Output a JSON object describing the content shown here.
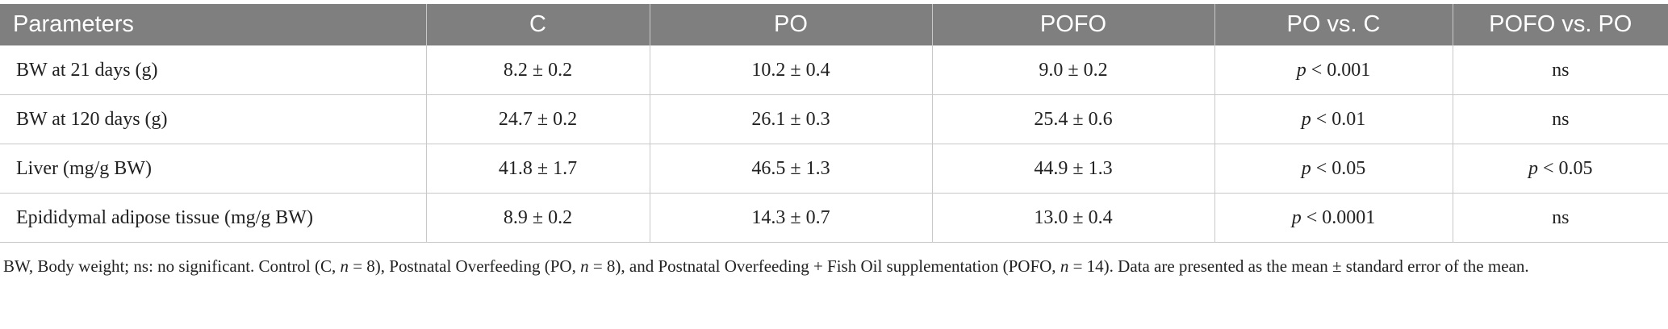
{
  "table": {
    "header": [
      "Parameters",
      "C",
      "PO",
      "POFO",
      "PO vs. C",
      "POFO vs. PO"
    ],
    "rows": [
      [
        "BW at 21 days (g)",
        "8.2 ± 0.2",
        "10.2 ± 0.4",
        "9.0 ± 0.2",
        "p < 0.001",
        "ns"
      ],
      [
        "BW at 120 days (g)",
        "24.7 ± 0.2",
        "26.1 ± 0.3",
        "25.4 ± 0.6",
        "p < 0.01",
        "ns"
      ],
      [
        "Liver (mg/g BW)",
        "41.8 ± 1.7",
        "46.5 ± 1.3",
        "44.9 ± 1.3",
        "p < 0.05",
        "p < 0.05"
      ],
      [
        "Epididymal adipose tissue (mg/g BW)",
        "8.9 ± 0.2",
        "14.3 ± 0.7",
        "13.0 ± 0.4",
        "p < 0.0001",
        "ns"
      ]
    ]
  },
  "footnote": "BW, Body weight; ns: no significant. Control (C, n = 8), Postnatal Overfeeding (PO, n = 8), and Postnatal Overfeeding + Fish Oil supplementation (POFO, n = 14). Data are presented as the mean ± standard error of the mean."
}
